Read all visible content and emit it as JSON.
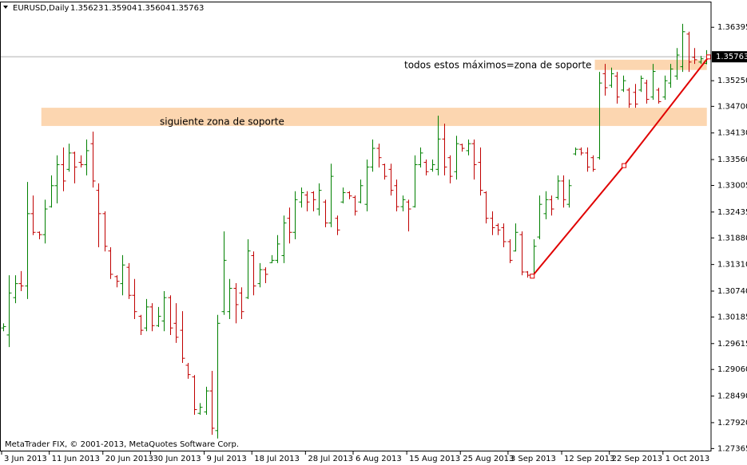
{
  "chart_data": {
    "type": "ohlc",
    "title": "EURUSD,Daily",
    "up_color": "#008000",
    "down_color": "#c00000",
    "zone_color": "#fcd6b0",
    "trend_color": "#e00000",
    "open": [
      1.2995,
      1.298,
      1.306,
      1.309,
      1.3085,
      1.324,
      1.32,
      1.3195,
      1.3255,
      1.33,
      1.3345,
      1.3335,
      1.337,
      1.335,
      1.3345,
      1.339,
      1.329,
      1.324,
      1.316,
      1.3105,
      1.309,
      1.3125,
      1.3065,
      1.302,
      1.2995,
      1.304,
      1.3,
      1.301,
      1.306,
      1.3005,
      1.299,
      1.2915,
      1.289,
      1.2812,
      1.2815,
      1.286,
      1.2775,
      1.303,
      1.303,
      1.308,
      1.307,
      1.306,
      1.315,
      1.309,
      1.312,
      1.3135,
      1.314,
      1.315,
      1.323,
      1.32,
      1.3265,
      1.328,
      1.3285,
      1.325,
      1.3265,
      1.322,
      1.323,
      1.3265,
      1.3285,
      1.3275,
      1.3265,
      1.326,
      1.334,
      1.338,
      1.3345,
      1.3335,
      1.33,
      1.3255,
      1.3265,
      1.3255,
      1.3345,
      1.335,
      1.3335,
      1.3335,
      1.34,
      1.336,
      1.333,
      1.3388,
      1.3375,
      1.339,
      1.335,
      1.3285,
      1.323,
      1.3215,
      1.321,
      1.318,
      1.316,
      1.3195,
      1.3115,
      1.311,
      1.319,
      1.324,
      1.327,
      1.3275,
      1.331,
      1.326,
      1.3368,
      1.3378,
      1.337,
      1.336,
      1.336,
      1.354,
      1.3515,
      1.3535,
      1.3505,
      1.3505,
      1.35,
      1.3505,
      1.352,
      1.349,
      1.3505,
      1.349,
      1.352,
      1.3535,
      1.3555,
      1.3625,
      1.3575,
      1.3565,
      1.35623
    ],
    "high": [
      1.3005,
      1.3108,
      1.3108,
      1.3117,
      1.3308,
      1.3279,
      1.3202,
      1.327,
      1.3322,
      1.3365,
      1.3382,
      1.339,
      1.3373,
      1.3365,
      1.3399,
      1.3416,
      1.3305,
      1.3245,
      1.3168,
      1.3108,
      1.3151,
      1.3134,
      1.31,
      1.3023,
      1.3057,
      1.3048,
      1.304,
      1.3074,
      1.3065,
      1.3048,
      1.3031,
      1.292,
      1.2894,
      1.2834,
      1.2869,
      1.2903,
      1.3023,
      1.3202,
      1.31,
      1.3091,
      1.3082,
      1.3185,
      1.3159,
      1.3134,
      1.3125,
      1.3151,
      1.3194,
      1.3236,
      1.3253,
      1.3288,
      1.3296,
      1.3288,
      1.3288,
      1.3305,
      1.327,
      1.3347,
      1.3236,
      1.3296,
      1.3288,
      1.3279,
      1.3313,
      1.3356,
      1.3399,
      1.339,
      1.3347,
      1.3347,
      1.3313,
      1.3279,
      1.327,
      1.3365,
      1.3382,
      1.3356,
      1.3356,
      1.345,
      1.3433,
      1.3365,
      1.3407,
      1.339,
      1.3399,
      1.3399,
      1.3382,
      1.3288,
      1.3245,
      1.3219,
      1.3219,
      1.3185,
      1.3219,
      1.3202,
      1.3117,
      1.3185,
      1.3279,
      1.3288,
      1.3279,
      1.3322,
      1.3322,
      1.3313,
      1.3382,
      1.3382,
      1.3382,
      1.3365,
      1.3544,
      1.3561,
      1.3553,
      1.3544,
      1.3536,
      1.351,
      1.3518,
      1.3536,
      1.3527,
      1.3561,
      1.351,
      1.3536,
      1.3561,
      1.3595,
      1.3647,
      1.363,
      1.3595,
      1.3578,
      1.35904
    ],
    "low": [
      1.2988,
      1.2954,
      1.3048,
      1.3074,
      1.3057,
      1.3194,
      1.3185,
      1.3176,
      1.3253,
      1.3262,
      1.3288,
      1.333,
      1.3305,
      1.3339,
      1.3322,
      1.3296,
      1.3168,
      1.3159,
      1.31,
      1.3082,
      1.3065,
      1.3057,
      1.3014,
      1.298,
      1.2988,
      1.2988,
      1.2997,
      1.2988,
      1.298,
      1.2963,
      1.292,
      1.2886,
      1.2809,
      1.2809,
      1.2809,
      1.2766,
      1.2758,
      1.3023,
      1.3014,
      1.3005,
      1.3014,
      1.3057,
      1.3065,
      1.3082,
      1.3091,
      1.3134,
      1.3134,
      1.3134,
      1.3176,
      1.3185,
      1.3253,
      1.3245,
      1.3245,
      1.3236,
      1.3211,
      1.3211,
      1.3194,
      1.3262,
      1.3271,
      1.3236,
      1.3262,
      1.3245,
      1.333,
      1.3339,
      1.3313,
      1.3279,
      1.3245,
      1.3245,
      1.3202,
      1.3253,
      1.3339,
      1.3322,
      1.333,
      1.3322,
      1.3322,
      1.3305,
      1.3313,
      1.3373,
      1.3365,
      1.3313,
      1.3279,
      1.3219,
      1.3194,
      1.3194,
      1.3168,
      1.3134,
      1.3159,
      1.3108,
      1.3103,
      1.3108,
      1.3185,
      1.3228,
      1.3236,
      1.327,
      1.3253,
      1.3253,
      1.3365,
      1.3365,
      1.333,
      1.333,
      1.3356,
      1.3493,
      1.351,
      1.3476,
      1.3501,
      1.3467,
      1.3467,
      1.3501,
      1.3476,
      1.3484,
      1.3476,
      1.3484,
      1.351,
      1.3527,
      1.3544,
      1.3544,
      1.3561,
      1.3561,
      1.35604
    ],
    "close": [
      1.2998,
      1.307,
      1.309,
      1.3085,
      1.324,
      1.32,
      1.3195,
      1.325,
      1.33,
      1.3345,
      1.331,
      1.337,
      1.334,
      1.3345,
      1.3375,
      1.331,
      1.324,
      1.317,
      1.311,
      1.3095,
      1.313,
      1.3065,
      1.303,
      1.299,
      1.304,
      1.3,
      1.302,
      1.306,
      1.2995,
      1.2975,
      1.293,
      1.2895,
      1.282,
      1.2825,
      1.286,
      1.278,
      1.3005,
      1.314,
      1.308,
      1.3045,
      1.303,
      1.316,
      1.3085,
      1.312,
      1.311,
      1.314,
      1.3175,
      1.322,
      1.32,
      1.327,
      1.3285,
      1.3265,
      1.327,
      1.329,
      1.322,
      1.332,
      1.3205,
      1.3285,
      1.3278,
      1.3245,
      1.33,
      1.334,
      1.338,
      1.336,
      1.332,
      1.329,
      1.3255,
      1.327,
      1.325,
      1.3345,
      1.337,
      1.333,
      1.3345,
      1.34,
      1.334,
      1.332,
      1.339,
      1.338,
      1.339,
      1.3345,
      1.329,
      1.323,
      1.321,
      1.3205,
      1.318,
      1.314,
      1.32,
      1.3115,
      1.3108,
      1.317,
      1.326,
      1.327,
      1.325,
      1.331,
      1.327,
      1.33,
      1.3378,
      1.337,
      1.334,
      1.3335,
      1.352,
      1.351,
      1.354,
      1.349,
      1.3525,
      1.3475,
      1.3475,
      1.353,
      1.3485,
      1.3545,
      1.348,
      1.3525,
      1.355,
      1.358,
      1.363,
      1.3565,
      1.357,
      1.3572,
      1.35763
    ],
    "xlim": [
      0,
      118
    ],
    "ylim": [
      1.2732,
      1.3698
    ],
    "xticks": [
      {
        "value": 0,
        "label": "3 Jun 2013"
      },
      {
        "value": 8,
        "label": "11 Jun 2013"
      },
      {
        "value": 17,
        "label": "20 Jun 2013"
      },
      {
        "value": 25,
        "label": "30 Jun 2013"
      },
      {
        "value": 34,
        "label": "9 Jul 2013"
      },
      {
        "value": 42,
        "label": "18 Jul 2013"
      },
      {
        "value": 51,
        "label": "28 Jul 2013"
      },
      {
        "value": 59,
        "label": "6 Aug 2013"
      },
      {
        "value": 68,
        "label": "15 Aug 2013"
      },
      {
        "value": 77,
        "label": "25 Aug 2013"
      },
      {
        "value": 85,
        "label": "3 Sep 2013"
      },
      {
        "value": 94,
        "label": "12 Sep 2013"
      },
      {
        "value": 102,
        "label": "22 Sep 2013"
      },
      {
        "value": 111,
        "label": "1 Oct 2013"
      }
    ],
    "yticks": [
      1.36395,
      {
        "value": 1.3525,
        "label": "1.35250"
      },
      {
        "value": 1.347,
        "label": "1.34700"
      },
      {
        "value": 1.3413,
        "label": "1.34130"
      },
      {
        "value": 1.3356,
        "label": "1.33560"
      },
      1.33005,
      1.32435,
      {
        "value": 1.3188,
        "label": "1.31880"
      },
      {
        "value": 1.3131,
        "label": "1.31310"
      },
      {
        "value": 1.3074,
        "label": "1.30740"
      },
      1.30185,
      1.29615,
      {
        "value": 1.2906,
        "label": "1.29060"
      },
      {
        "value": 1.2849,
        "label": "1.28490"
      },
      {
        "value": 1.2792,
        "label": "1.27920"
      },
      1.27365
    ],
    "zones": [
      {
        "x": [
          6.4,
          118.1
        ],
        "y": [
          1.3428,
          1.3467
        ],
        "label": "siguiente zona de soporte"
      },
      {
        "x": [
          99.3,
          118.1
        ],
        "y": [
          1.3548,
          1.357
        ],
        "label": "todos estos máximos=zona de soporte"
      }
    ],
    "trendline": {
      "x": [
        88.8,
        104.2,
        118.4
      ],
      "y": [
        1.3106,
        1.3343,
        1.3576
      ]
    },
    "footer": "MetaTrader FIX, © 2001-2013, MetaQuotes Software Corp."
  }
}
